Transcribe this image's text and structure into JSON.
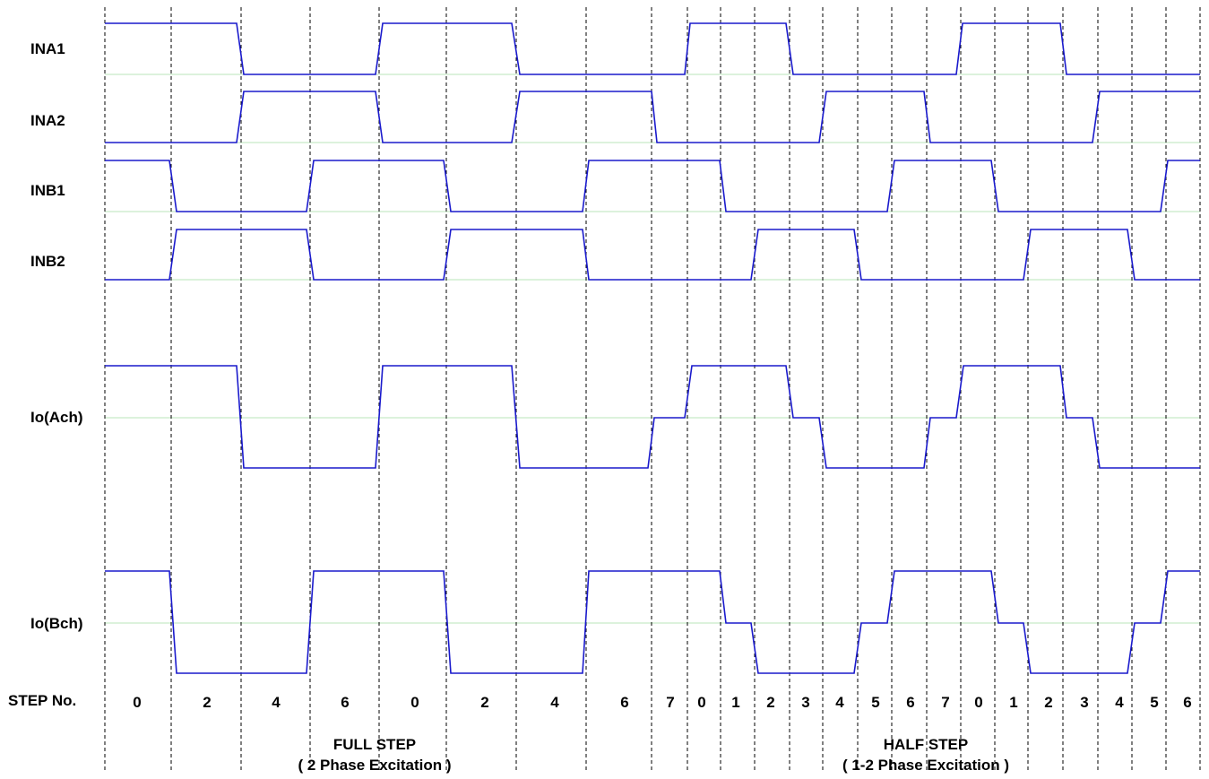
{
  "signals": [
    {
      "name": "INA1",
      "label": "INA1"
    },
    {
      "name": "INA2",
      "label": "INA2"
    },
    {
      "name": "INB1",
      "label": "INB1"
    },
    {
      "name": "INB2",
      "label": "INB2"
    },
    {
      "name": "Io-Ach",
      "label": "Io(Ach)"
    },
    {
      "name": "Io-Bch",
      "label": "Io(Bch)"
    }
  ],
  "step_row_label": "STEP No.",
  "full_step": {
    "title": "FULL STEP",
    "subtitle": "( 2 Phase Excitation )",
    "steps": [
      "0",
      "2",
      "4",
      "6",
      "0",
      "2",
      "4",
      "6"
    ]
  },
  "half_step": {
    "title": "HALF STEP",
    "subtitle": "( 1-2 Phase Excitation )",
    "steps": [
      "7",
      "0",
      "1",
      "2",
      "3",
      "4",
      "5",
      "6",
      "7",
      "0",
      "1",
      "2",
      "3",
      "4",
      "5",
      "6"
    ]
  },
  "colors": {
    "waveform": "#1a1acc",
    "baseline": "#b8e6b8",
    "divider": "#000000"
  }
}
